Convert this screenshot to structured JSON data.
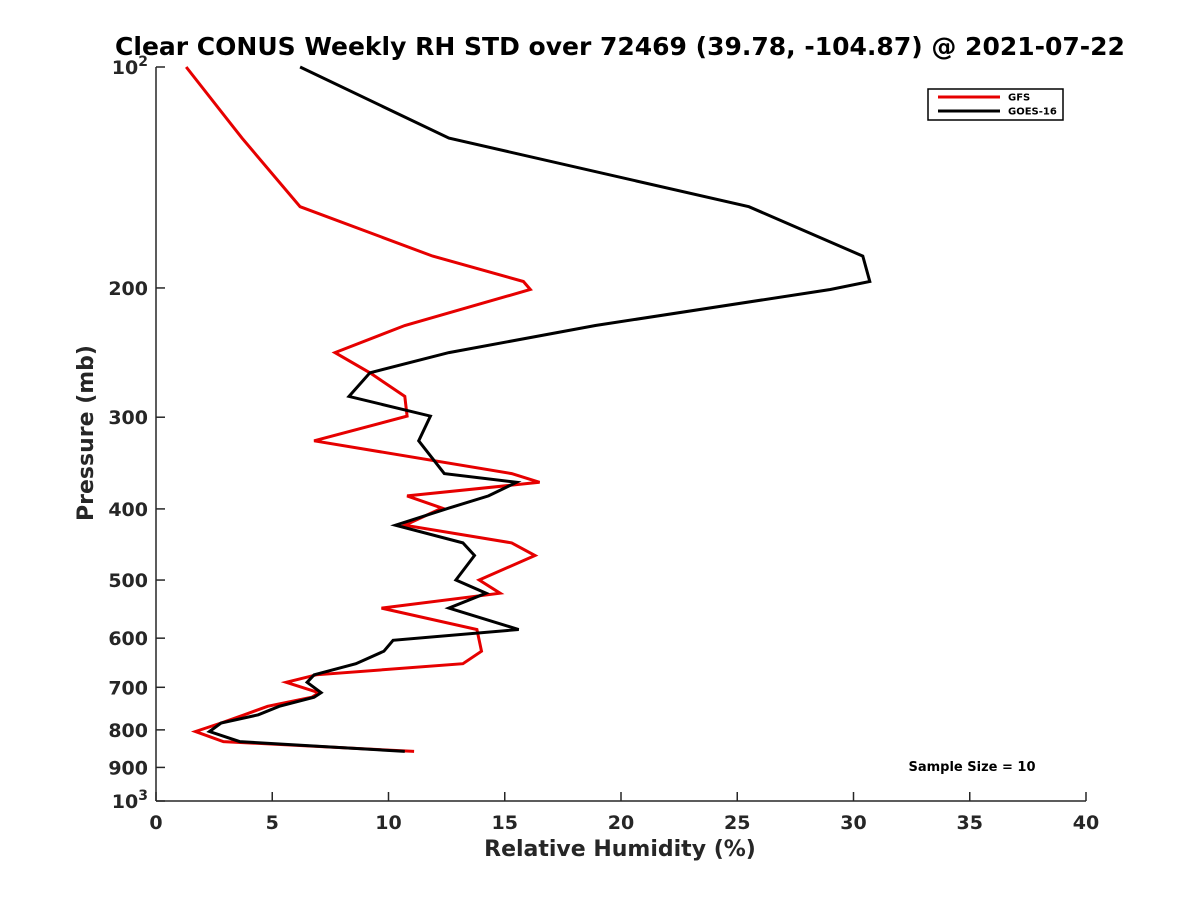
{
  "chart_data": {
    "type": "line",
    "title": "Clear CONUS Weekly RH STD over 72469 (39.78, -104.87) @ 2021-07-22",
    "xlabel": "Relative Humidity (%)",
    "ylabel": "Pressure (mb)",
    "xlim": [
      0,
      40
    ],
    "ylim": [
      100,
      1000
    ],
    "y_scale": "log",
    "y_reversed": true,
    "grid": false,
    "legend": "top-right",
    "x_ticks": [
      {
        "value": 0,
        "label": "0"
      },
      {
        "value": 5,
        "label": "5"
      },
      {
        "value": 10,
        "label": "10"
      },
      {
        "value": 15,
        "label": "15"
      },
      {
        "value": 20,
        "label": "20"
      },
      {
        "value": 25,
        "label": "25"
      },
      {
        "value": 30,
        "label": "30"
      },
      {
        "value": 35,
        "label": "35"
      },
      {
        "value": 40,
        "label": "40"
      }
    ],
    "y_ticks": [
      {
        "value": 100,
        "base": "10",
        "exp": "2"
      },
      {
        "value": 200,
        "label": "200"
      },
      {
        "value": 300,
        "label": "300"
      },
      {
        "value": 400,
        "label": "400"
      },
      {
        "value": 500,
        "label": "500"
      },
      {
        "value": 600,
        "label": "600"
      },
      {
        "value": 700,
        "label": "700"
      },
      {
        "value": 800,
        "label": "800"
      },
      {
        "value": 900,
        "label": "900"
      },
      {
        "value": 1000,
        "base": "10",
        "exp": "3"
      }
    ],
    "annotation": "Sample Size = 10",
    "series": [
      {
        "name": "GFS",
        "color": "#e60000",
        "points": [
          [
            1.3,
            100
          ],
          [
            3.7,
            125
          ],
          [
            6.2,
            155
          ],
          [
            11.9,
            181
          ],
          [
            15.8,
            196
          ],
          [
            16.1,
            201
          ],
          [
            10.7,
            225
          ],
          [
            7.7,
            245
          ],
          [
            9.2,
            261
          ],
          [
            10.7,
            281
          ],
          [
            10.8,
            299
          ],
          [
            6.8,
            323
          ],
          [
            15.3,
            358
          ],
          [
            16.5,
            368
          ],
          [
            10.8,
            384
          ],
          [
            12.3,
            399
          ],
          [
            10.7,
            421
          ],
          [
            15.3,
            445
          ],
          [
            16.3,
            463
          ],
          [
            13.9,
            500
          ],
          [
            14.8,
            521
          ],
          [
            9.7,
            546
          ],
          [
            13.8,
            584
          ],
          [
            13.9,
            604
          ],
          [
            14.0,
            625
          ],
          [
            13.2,
            650
          ],
          [
            6.9,
            673
          ],
          [
            5.6,
            689
          ],
          [
            7.0,
            712
          ],
          [
            6.7,
            722
          ],
          [
            4.8,
            743
          ],
          [
            3.8,
            763
          ],
          [
            2.8,
            783
          ],
          [
            1.7,
            804
          ],
          [
            2.9,
            830
          ],
          [
            11.1,
            856
          ]
        ]
      },
      {
        "name": "GOES-16",
        "color": "#000000",
        "points": [
          [
            6.2,
            100
          ],
          [
            12.6,
            125
          ],
          [
            25.5,
            155
          ],
          [
            30.4,
            181
          ],
          [
            30.7,
            196
          ],
          [
            29.0,
            201
          ],
          [
            18.9,
            225
          ],
          [
            12.6,
            245
          ],
          [
            9.2,
            261
          ],
          [
            8.3,
            281
          ],
          [
            11.8,
            299
          ],
          [
            11.3,
            323
          ],
          [
            12.4,
            358
          ],
          [
            15.5,
            368
          ],
          [
            14.3,
            384
          ],
          [
            12.6,
            399
          ],
          [
            10.3,
            421
          ],
          [
            13.2,
            445
          ],
          [
            13.7,
            463
          ],
          [
            12.9,
            500
          ],
          [
            14.2,
            521
          ],
          [
            12.6,
            546
          ],
          [
            15.6,
            584
          ],
          [
            10.2,
            604
          ],
          [
            9.8,
            625
          ],
          [
            8.6,
            650
          ],
          [
            6.8,
            673
          ],
          [
            6.5,
            689
          ],
          [
            7.1,
            712
          ],
          [
            6.8,
            722
          ],
          [
            5.3,
            743
          ],
          [
            4.4,
            763
          ],
          [
            2.8,
            783
          ],
          [
            2.3,
            804
          ],
          [
            3.6,
            830
          ],
          [
            10.7,
            856
          ]
        ]
      }
    ]
  }
}
